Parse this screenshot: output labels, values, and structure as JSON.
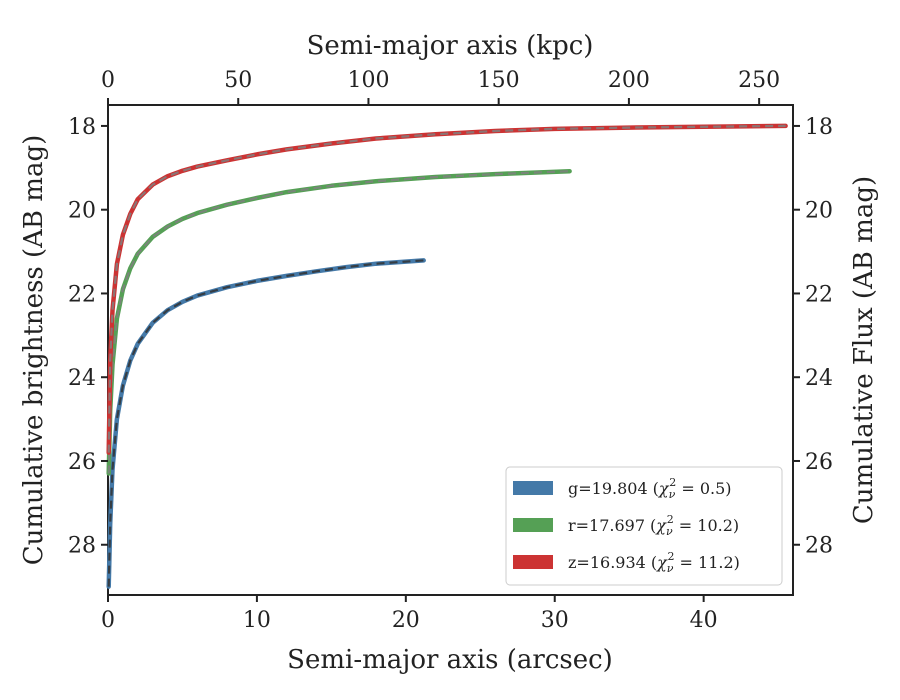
{
  "chart_data": {
    "type": "line",
    "xlabel": "Semi-major axis (arcsec)",
    "x2label": "Semi-major axis (kpc)",
    "ylabel": "Cumulative brightness (AB mag)",
    "y2label": "Cumulative Flux (AB mag)",
    "xlim": [
      0,
      46
    ],
    "x2lim": [
      0,
      263
    ],
    "ylim": [
      29.2,
      17.5
    ],
    "y_inverted": true,
    "x_ticks": [
      0,
      10,
      20,
      30,
      40
    ],
    "x2_ticks": [
      0,
      50,
      100,
      150,
      200,
      250
    ],
    "y_ticks": [
      18,
      20,
      22,
      24,
      26,
      28
    ],
    "grid": false,
    "legend_position": "bottom-right",
    "series": [
      {
        "name": "g=19.804",
        "chi_label": "χ",
        "chi_sub": "ν",
        "chi_sup": "2",
        "chi_value": " = 0.5)",
        "color": "#4479a8",
        "model_color": "#333333",
        "x": [
          0.05,
          0.15,
          0.3,
          0.6,
          1.0,
          1.5,
          2.0,
          3.0,
          4.0,
          5.0,
          6.0,
          8.0,
          10.0,
          12.0,
          14.0,
          16.0,
          18.0,
          20.0,
          21.2
        ],
        "y": [
          29.0,
          27.5,
          26.2,
          25.0,
          24.2,
          23.6,
          23.2,
          22.7,
          22.4,
          22.2,
          22.05,
          21.85,
          21.7,
          21.58,
          21.47,
          21.37,
          21.29,
          21.24,
          21.21
        ]
      },
      {
        "name": "r=17.697",
        "chi_label": "χ",
        "chi_sub": "ν",
        "chi_sup": "2",
        "chi_value": " = 10.2)",
        "color": "#55a055",
        "model_color": "#808080",
        "x": [
          0.05,
          0.15,
          0.3,
          0.6,
          1.0,
          1.5,
          2.0,
          3.0,
          4.0,
          5.0,
          6.0,
          8.0,
          10.0,
          12.0,
          15.0,
          18.0,
          22.0,
          26.0,
          31.0
        ],
        "y": [
          26.3,
          24.8,
          23.7,
          22.6,
          21.9,
          21.4,
          21.05,
          20.65,
          20.4,
          20.22,
          20.08,
          19.88,
          19.72,
          19.58,
          19.43,
          19.32,
          19.22,
          19.15,
          19.08
        ]
      },
      {
        "name": "z=16.934",
        "chi_label": "χ",
        "chi_sub": "ν",
        "chi_sup": "2",
        "chi_value": " = 11.2)",
        "color": "#cc3333",
        "model_color": "#808080",
        "x": [
          0.05,
          0.15,
          0.3,
          0.6,
          1.0,
          1.5,
          2.0,
          3.0,
          4.0,
          5.0,
          6.0,
          8.0,
          10.0,
          12.0,
          15.0,
          18.0,
          22.0,
          26.0,
          30.0,
          35.0,
          40.0,
          45.5
        ],
        "y": [
          25.8,
          23.6,
          22.4,
          21.3,
          20.6,
          20.1,
          19.75,
          19.4,
          19.2,
          19.07,
          18.97,
          18.82,
          18.68,
          18.56,
          18.42,
          18.3,
          18.2,
          18.12,
          18.07,
          18.04,
          18.02,
          18.0
        ]
      }
    ]
  }
}
